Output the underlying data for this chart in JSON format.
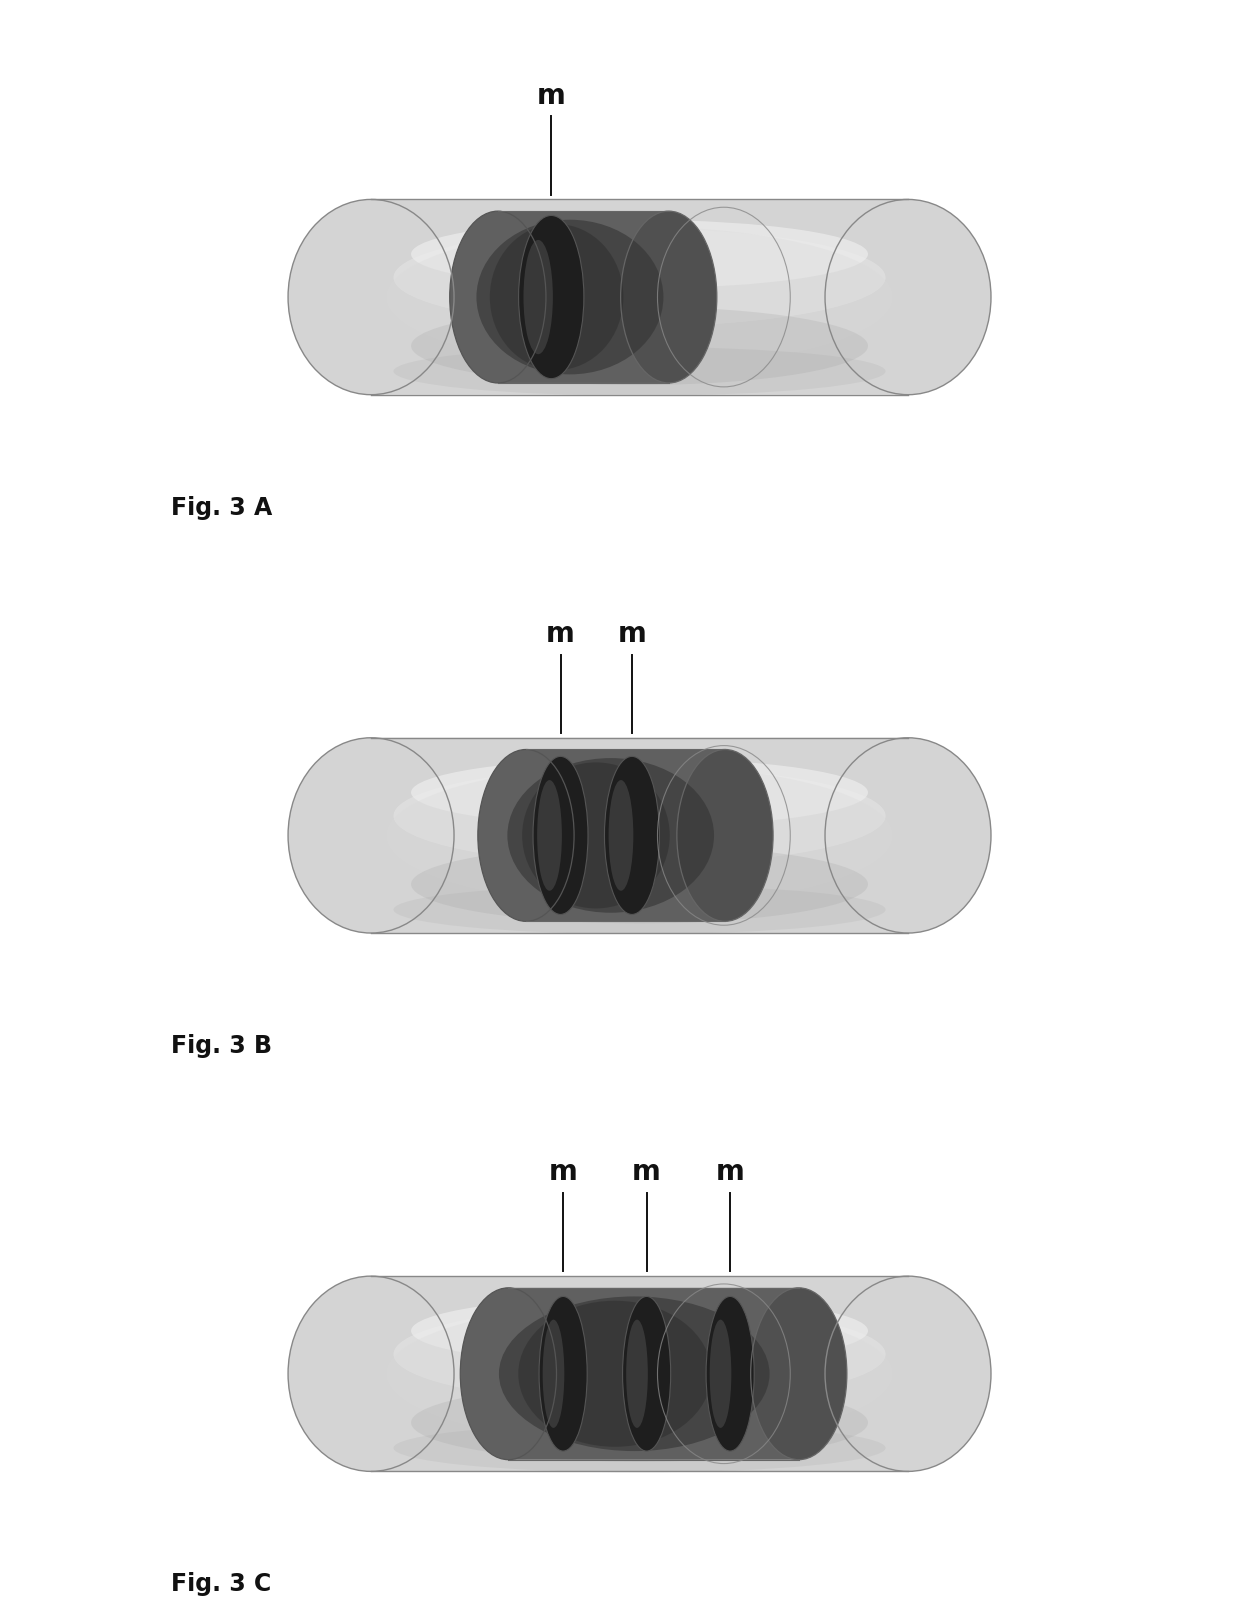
{
  "background_color": "#ffffff",
  "fig_labels": [
    "Fig. 3 A",
    "Fig. 3 B",
    "Fig. 3 C"
  ],
  "line_color": "#111111",
  "text_color": "#111111",
  "m_fontsize": 20,
  "fig_label_fontsize": 17,
  "capsule_fill": "#d4d4d4",
  "capsule_edge": "#888888",
  "inner_cavity_fill": "#aaaaaa",
  "magnet_fill": "#2e2e2e",
  "magnet_edge": "#444444"
}
